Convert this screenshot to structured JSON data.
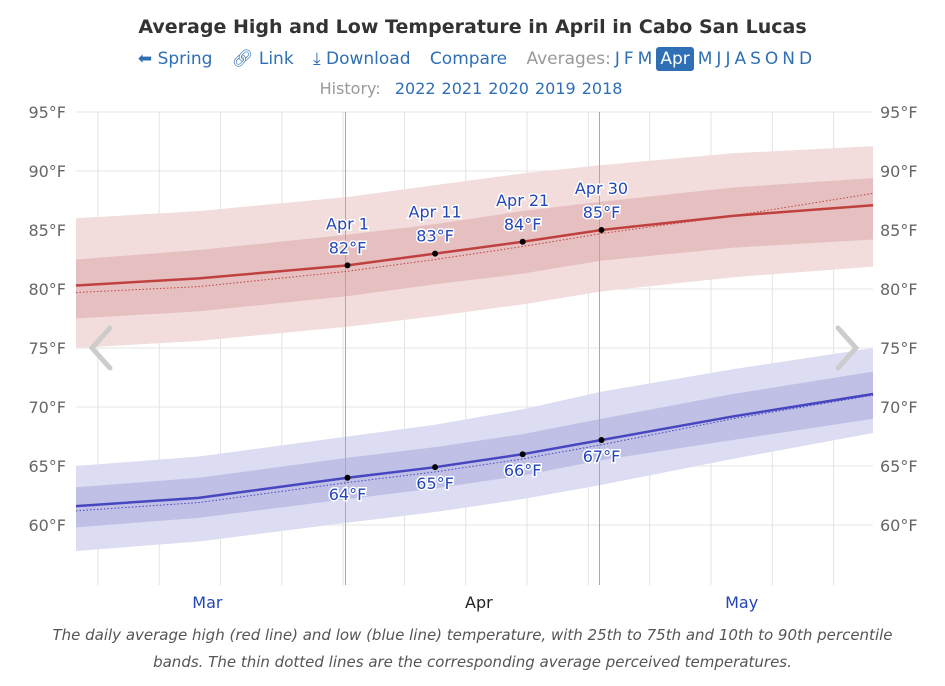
{
  "title": "Average High and Low Temperature in April in Cabo San Lucas",
  "nav": {
    "spring": "Spring",
    "link": "Link",
    "download": "Download",
    "compare": "Compare",
    "averages_label": "Averages:",
    "months": [
      "J",
      "F",
      "M",
      "Apr",
      "M",
      "J",
      "J",
      "A",
      "S",
      "O",
      "N",
      "D"
    ],
    "selected_month": "Apr"
  },
  "history": {
    "label": "History:",
    "years": [
      "2022",
      "2021",
      "2020",
      "2019",
      "2018"
    ]
  },
  "caption": "The daily average high (red line) and low (blue line) temperature, with 25th to 75th and 10th to 90th percentile bands. The thin dotted lines are the corresponding average perceived temperatures.",
  "chart_data": {
    "type": "line",
    "title": "Average High and Low Temperature in April in Cabo San Lucas",
    "x": [
      "Mar 1",
      "Mar 15",
      "Apr 1",
      "Apr 11",
      "Apr 21",
      "Apr 30",
      "May 15",
      "May 31"
    ],
    "xlim": [
      "Mar 1",
      "May 31"
    ],
    "x_tick_labels": [
      "Mar",
      "Apr",
      "May"
    ],
    "ylim": [
      55,
      95
    ],
    "y_ticks": [
      "95°F",
      "90°F",
      "85°F",
      "80°F",
      "75°F",
      "70°F",
      "65°F",
      "60°F"
    ],
    "grid": true,
    "colors": {
      "high": "#c0403f",
      "low": "#4646c0",
      "high_inner": "#e6c0c0",
      "high_outer": "#f2dcdc",
      "low_inner": "#c0c0e6",
      "low_outer": "#dcdcf2"
    },
    "series": [
      {
        "key": "high",
        "mean": [
          80.3,
          80.9,
          82.0,
          83.0,
          84.0,
          85.0,
          86.2,
          87.1
        ],
        "perceived": [
          79.7,
          80.2,
          81.5,
          82.5,
          83.6,
          84.7,
          86.2,
          88.1
        ],
        "p25": [
          77.5,
          78.1,
          79.4,
          80.4,
          81.3,
          82.4,
          83.5,
          84.2
        ],
        "p75": [
          82.5,
          83.3,
          84.6,
          85.5,
          86.6,
          87.4,
          88.6,
          89.4
        ],
        "p10": [
          75.0,
          75.6,
          76.8,
          77.7,
          78.7,
          79.8,
          81.0,
          81.9
        ],
        "p90": [
          86.0,
          86.6,
          87.8,
          88.8,
          89.8,
          90.5,
          91.5,
          92.1
        ]
      },
      {
        "key": "low",
        "mean": [
          61.6,
          62.3,
          64.0,
          64.9,
          66.0,
          67.2,
          69.2,
          71.1
        ],
        "perceived": [
          61.2,
          61.9,
          63.6,
          64.5,
          65.6,
          66.8,
          69.0,
          71.0
        ],
        "p25": [
          59.8,
          60.6,
          62.2,
          63.1,
          64.2,
          65.5,
          67.2,
          69.0
        ],
        "p75": [
          63.2,
          64.0,
          65.7,
          66.6,
          67.7,
          69.0,
          71.1,
          73.0
        ],
        "p10": [
          57.8,
          58.6,
          60.2,
          61.1,
          62.2,
          63.4,
          65.6,
          67.8
        ],
        "p90": [
          65.0,
          65.8,
          67.5,
          68.5,
          69.8,
          71.3,
          73.2,
          75.0
        ]
      }
    ],
    "annotations": [
      {
        "date": "Apr 1",
        "high": "82°F",
        "low": "64°F",
        "high_value": 82,
        "low_value": 64
      },
      {
        "date": "Apr 11",
        "high": "83°F",
        "low": "65°F",
        "high_value": 83,
        "low_value": 64.9
      },
      {
        "date": "Apr 21",
        "high": "84°F",
        "low": "66°F",
        "high_value": 84,
        "low_value": 66
      },
      {
        "date": "Apr 30",
        "high": "85°F",
        "low": "67°F",
        "high_value": 85,
        "low_value": 67.2
      }
    ]
  }
}
